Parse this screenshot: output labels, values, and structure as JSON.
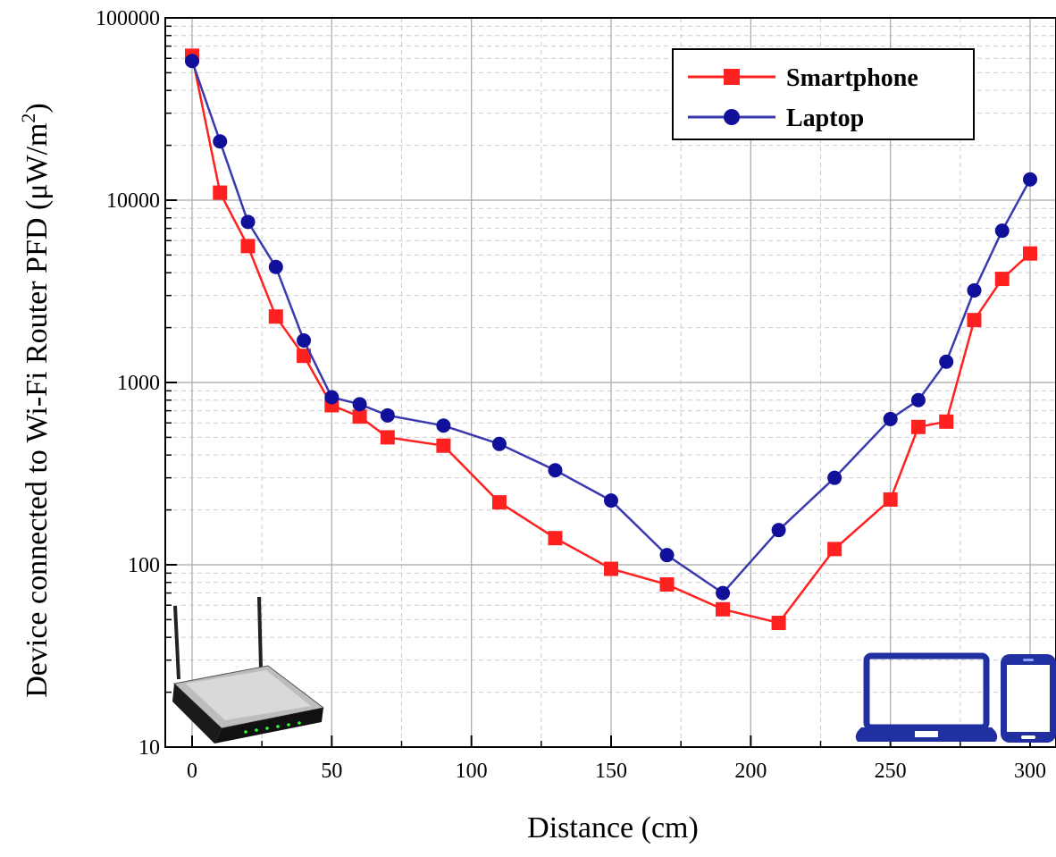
{
  "chart_data": {
    "type": "line",
    "title": "",
    "xlabel": "Distance (cm)",
    "ylabel_main": "Device connected to Wi-Fi Router PFD (μW/m",
    "ylabel_sup": "2",
    "ylabel_close": ")",
    "y_scale": "log",
    "xlim": [
      -9,
      310
    ],
    "ylim": [
      10,
      100000
    ],
    "x_tick_labels": [
      "0",
      "50",
      "100",
      "150",
      "200",
      "250",
      "300"
    ],
    "x_tick_values": [
      0,
      50,
      100,
      150,
      200,
      250,
      300
    ],
    "y_tick_labels": [
      "10",
      "100",
      "1000",
      "10000",
      "100000"
    ],
    "y_tick_values": [
      10,
      100,
      1000,
      10000,
      100000
    ],
    "grid": true,
    "legend_position": "top-right",
    "series": [
      {
        "name": "Smartphone",
        "color": "#ff2020",
        "marker": "square",
        "x": [
          0,
          10,
          20,
          30,
          40,
          50,
          60,
          70,
          90,
          110,
          130,
          150,
          170,
          190,
          210,
          230,
          250,
          260,
          270,
          280,
          290,
          300
        ],
        "y": [
          62000,
          11000,
          5600,
          2300,
          1400,
          750,
          650,
          500,
          450,
          220,
          140,
          95,
          78,
          57,
          48,
          122,
          228,
          570,
          610,
          2200,
          3700,
          5100
        ]
      },
      {
        "name": "Laptop",
        "color": "#3a3aae",
        "marker": "circle",
        "x": [
          0,
          10,
          20,
          30,
          40,
          50,
          60,
          70,
          90,
          110,
          130,
          150,
          170,
          190,
          210,
          230,
          250,
          260,
          270,
          280,
          290,
          300
        ],
        "y": [
          58000,
          21000,
          7600,
          4300,
          1700,
          830,
          760,
          660,
          580,
          460,
          330,
          225,
          113,
          70,
          155,
          300,
          630,
          800,
          1300,
          3200,
          6800,
          13000
        ]
      }
    ]
  },
  "icons": {
    "router": "wifi-router-icon",
    "laptop": "laptop-icon",
    "smartphone": "smartphone-icon",
    "device_color": "#2030a0"
  }
}
